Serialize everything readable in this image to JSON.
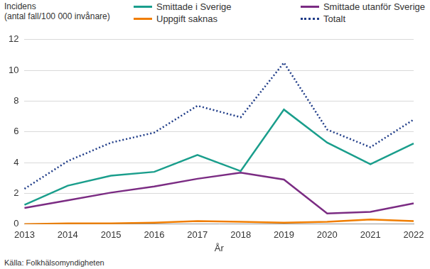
{
  "chart_data": {
    "type": "line",
    "y_label": "Incidens\n(antal fall/100 000 invånare)",
    "x_label": "År",
    "annotations": [
      "Källa: Folkhälsomyndigheten"
    ],
    "categories": [
      "2013",
      "2014",
      "2015",
      "2016",
      "2017",
      "2018",
      "2019",
      "2020",
      "2021",
      "2022"
    ],
    "series": [
      {
        "name": "Smittade i Sverige",
        "color": "#1a9e8c",
        "line_style": "solid",
        "values": [
          1.25,
          2.5,
          3.15,
          3.4,
          4.5,
          3.45,
          7.45,
          5.3,
          3.9,
          5.25
        ]
      },
      {
        "name": "Smittade utanför Sverige",
        "color": "#7b2c83",
        "line_style": "solid",
        "values": [
          1.05,
          1.55,
          2.05,
          2.45,
          2.95,
          3.35,
          2.9,
          0.7,
          0.8,
          1.35
        ]
      },
      {
        "name": "Uppgift saknas",
        "color": "#f07d00",
        "line_style": "solid",
        "values": [
          0.0,
          0.05,
          0.05,
          0.1,
          0.2,
          0.15,
          0.1,
          0.15,
          0.3,
          0.2
        ]
      },
      {
        "name": "Totalt",
        "color": "#1f3c88",
        "line_style": "dotted",
        "values": [
          2.3,
          4.1,
          5.3,
          5.95,
          7.7,
          6.95,
          10.5,
          6.15,
          5.0,
          6.8
        ]
      }
    ],
    "ylim": [
      0,
      12
    ],
    "yticks": [
      0,
      2,
      4,
      6,
      8,
      10,
      12
    ],
    "grid": true,
    "legend": "top"
  }
}
